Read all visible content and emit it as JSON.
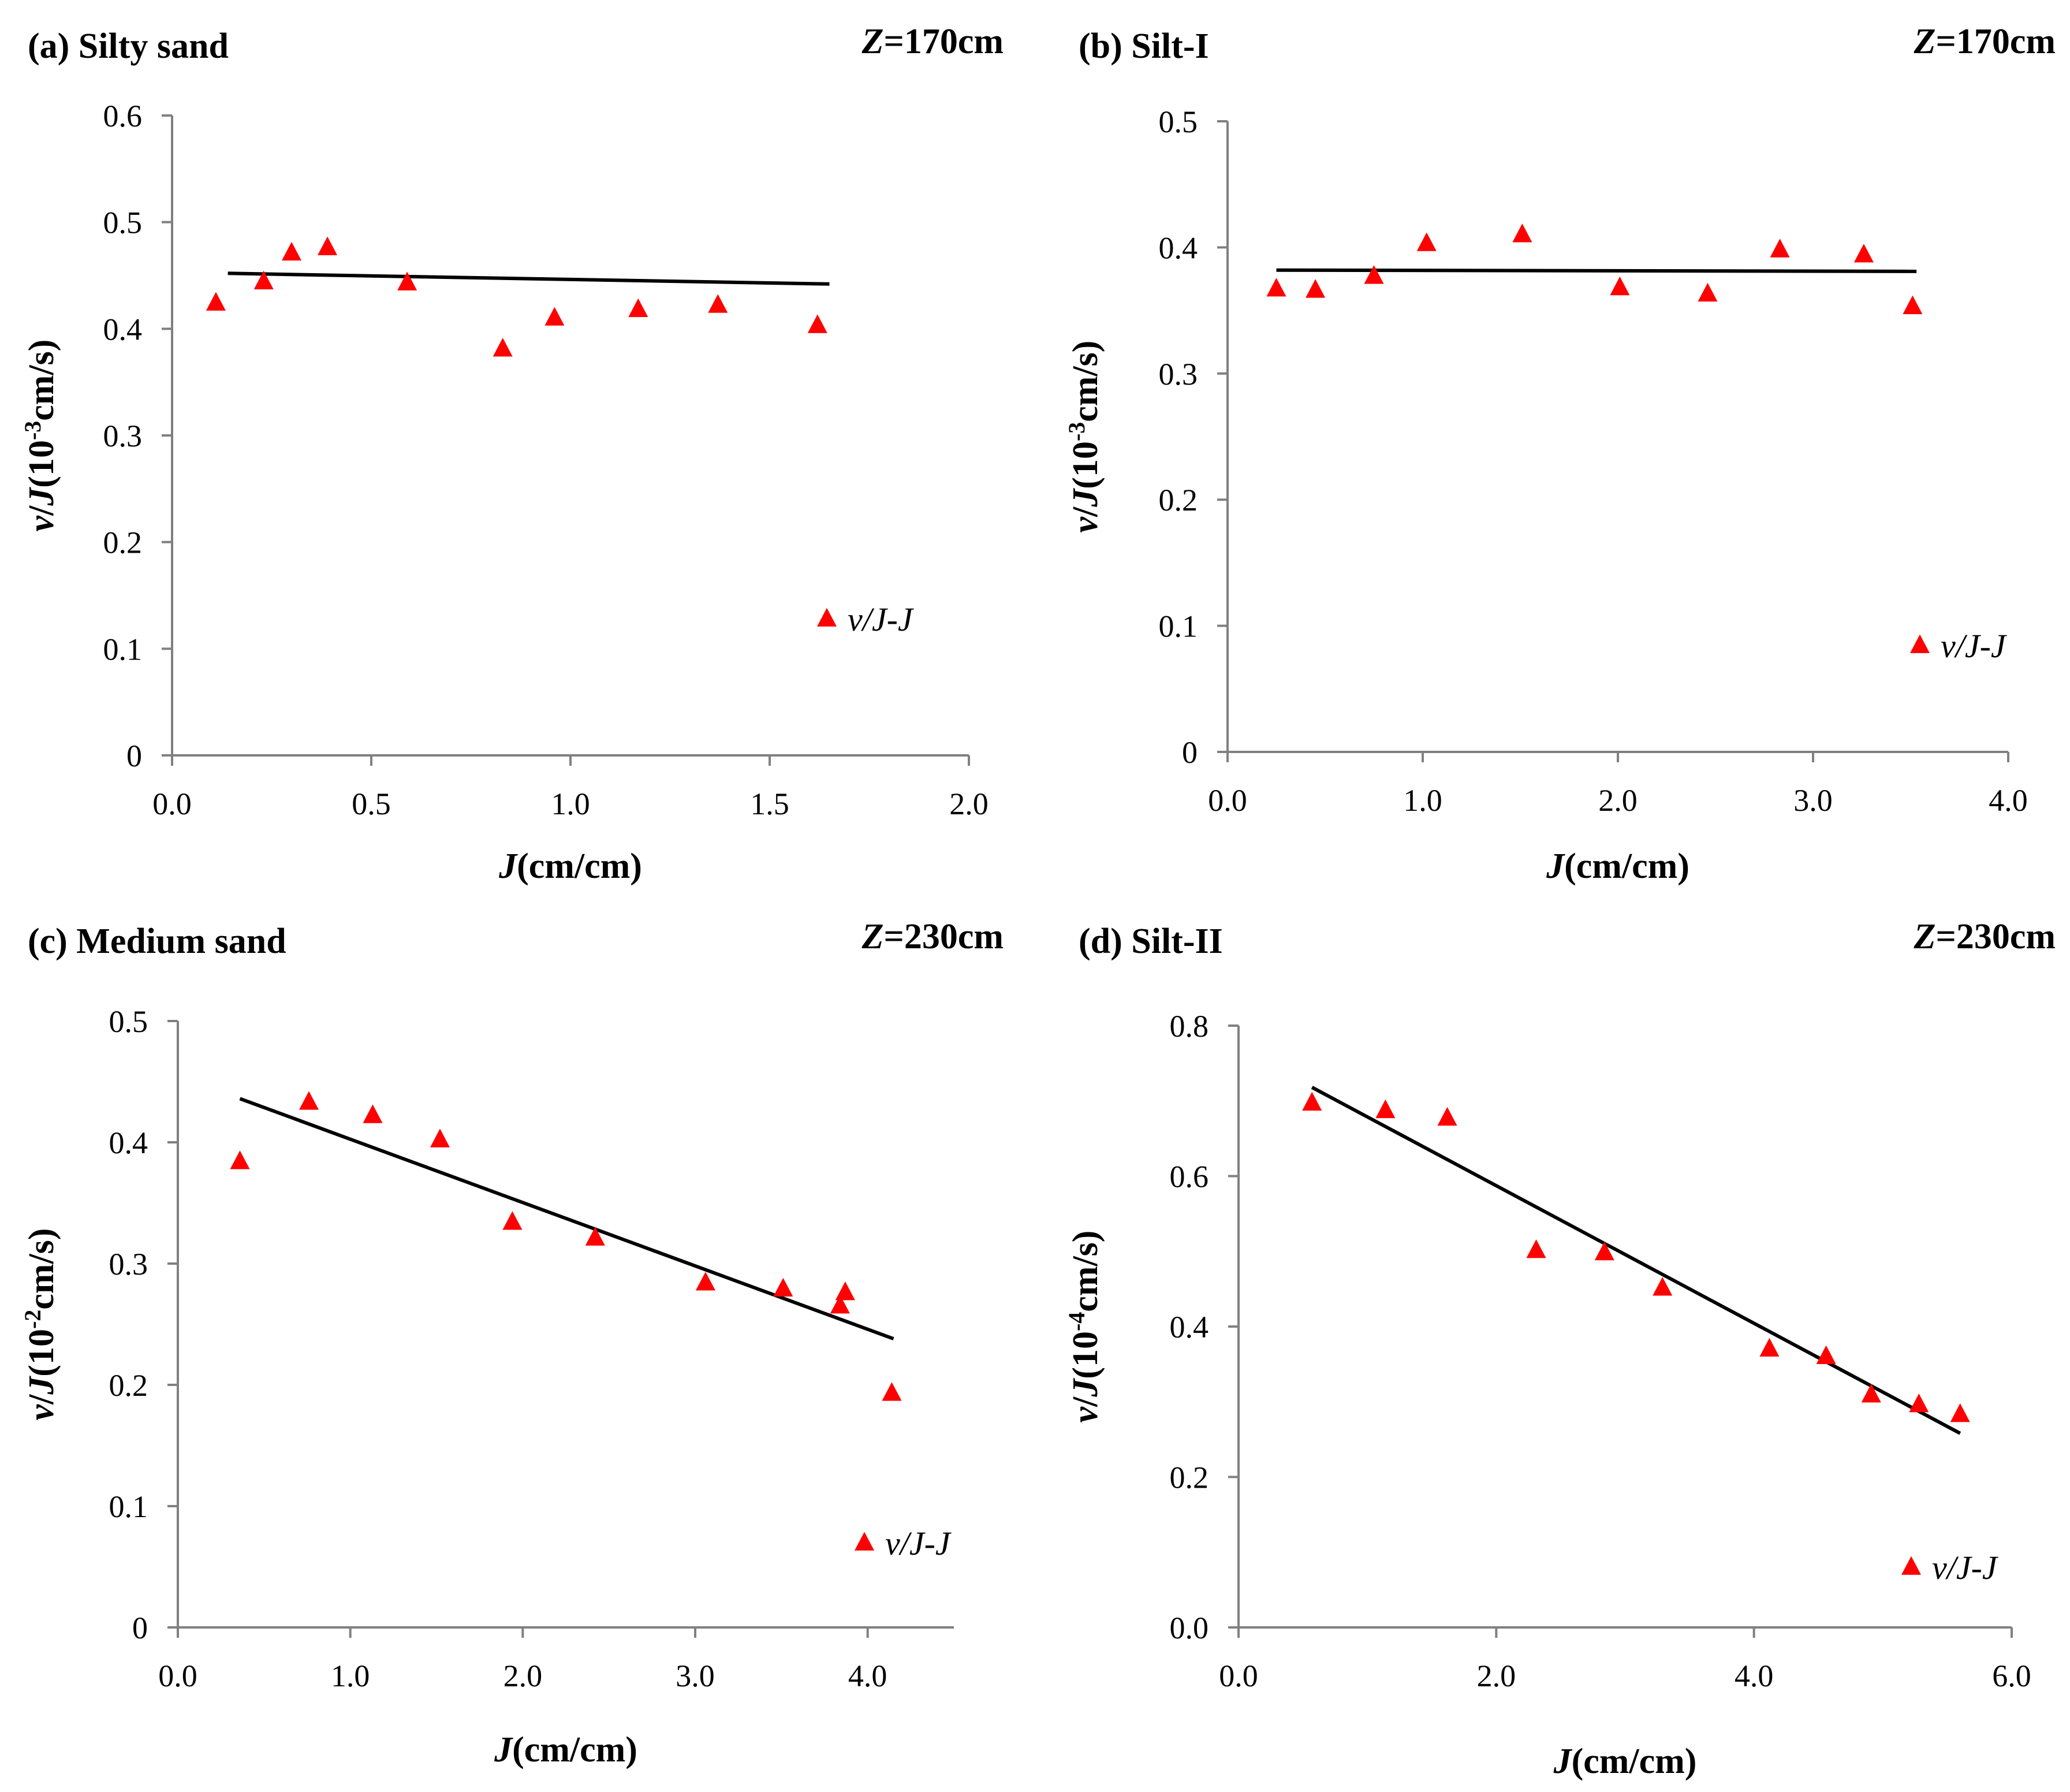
{
  "figure": {
    "marker_color": "#ff0000",
    "fit_color": "#000000",
    "axis_color": "#808080"
  },
  "chart_data": [
    {
      "type": "scatter",
      "panel_label": "(a) Silty sand",
      "depth": {
        "var": "Z",
        "rest": "=170cm"
      },
      "xlabel": {
        "var": "J",
        "rest": "(cm/cm)"
      },
      "ylabel": {
        "v": "v",
        "slash": "/",
        "J": "J",
        "pre": "(10",
        "exp": "-3",
        "post": "cm/s)"
      },
      "xlim": [
        0,
        2.0
      ],
      "ylim": [
        0,
        0.6
      ],
      "xticks": [
        0,
        0.5,
        1.0,
        1.5,
        2.0
      ],
      "xtick_labels": [
        "0.0",
        "0.5",
        "1.0",
        "1.5",
        "2.0"
      ],
      "yticks": [
        0,
        0.1,
        0.2,
        0.3,
        0.4,
        0.5,
        0.6
      ],
      "ytick_labels": [
        "0",
        "0.1",
        "0.2",
        "0.3",
        "0.4",
        "0.5",
        "0.6"
      ],
      "legend": "v/J-J",
      "legend_position": "lower-right",
      "series": [
        {
          "name": "v/J-J",
          "x": [
            0.11,
            0.23,
            0.3,
            0.39,
            0.59,
            0.83,
            0.96,
            1.17,
            1.37,
            1.62
          ],
          "y": [
            0.424,
            0.444,
            0.471,
            0.476,
            0.443,
            0.381,
            0.41,
            0.418,
            0.422,
            0.403
          ]
        }
      ],
      "fit": {
        "x": [
          0.14,
          1.65
        ],
        "y": [
          0.452,
          0.442
        ]
      }
    },
    {
      "type": "scatter",
      "panel_label": "(b) Silt-I",
      "depth": {
        "var": "Z",
        "rest": "=170cm"
      },
      "xlabel": {
        "var": "J",
        "rest": "(cm/cm)"
      },
      "ylabel": {
        "v": "v",
        "slash": "/",
        "J": "J",
        "pre": "(10",
        "exp": "-3",
        "post": "cm/s)"
      },
      "xlim": [
        0,
        4.0
      ],
      "ylim": [
        0,
        0.5
      ],
      "xticks": [
        0,
        1.0,
        2.0,
        3.0,
        4.0
      ],
      "xtick_labels": [
        "0.0",
        "1.0",
        "2.0",
        "3.0",
        "4.0"
      ],
      "yticks": [
        0,
        0.1,
        0.2,
        0.3,
        0.4,
        0.5
      ],
      "ytick_labels": [
        "0",
        "0.1",
        "0.2",
        "0.3",
        "0.4",
        "0.5"
      ],
      "legend": "v/J-J",
      "legend_position": "lower-right",
      "series": [
        {
          "name": "v/J-J",
          "x": [
            0.25,
            0.45,
            0.75,
            1.02,
            1.51,
            2.01,
            2.46,
            2.83,
            3.26,
            3.51
          ],
          "y": [
            0.367,
            0.366,
            0.377,
            0.403,
            0.41,
            0.368,
            0.363,
            0.398,
            0.394,
            0.353
          ]
        }
      ],
      "fit": {
        "x": [
          0.25,
          3.53
        ],
        "y": [
          0.382,
          0.381
        ]
      }
    },
    {
      "type": "scatter",
      "panel_label": "(c) Medium sand",
      "depth": {
        "var": "Z",
        "rest": "=230cm"
      },
      "xlabel": {
        "var": "J",
        "rest": "(cm/cm)"
      },
      "ylabel": {
        "v": "v",
        "slash": "/",
        "J": "J",
        "pre": "(10",
        "exp": "-2",
        "post": "cm/s)"
      },
      "xlim": [
        0,
        4.5
      ],
      "ylim": [
        0,
        0.5
      ],
      "xticks": [
        0,
        1.0,
        2.0,
        3.0,
        4.0
      ],
      "xtick_labels": [
        "0.0",
        "1.0",
        "2.0",
        "3.0",
        "4.0"
      ],
      "yticks": [
        0,
        0.1,
        0.2,
        0.3,
        0.4,
        0.5
      ],
      "ytick_labels": [
        "0",
        "0.1",
        "0.2",
        "0.3",
        "0.4",
        "0.5"
      ],
      "legend": "v/J-J",
      "legend_position": "lower-right",
      "series": [
        {
          "name": "v/J-J",
          "x": [
            0.36,
            0.76,
            1.13,
            1.52,
            1.94,
            2.42,
            3.06,
            3.51,
            3.84,
            3.87,
            4.14
          ],
          "y": [
            0.384,
            0.433,
            0.422,
            0.402,
            0.334,
            0.321,
            0.284,
            0.279,
            0.265,
            0.276,
            0.193
          ]
        }
      ],
      "fit": {
        "x": [
          0.36,
          4.15
        ],
        "y": [
          0.436,
          0.238
        ]
      }
    },
    {
      "type": "scatter",
      "panel_label": "(d) Silt-II",
      "depth": {
        "var": "Z",
        "rest": "=230cm"
      },
      "xlabel": {
        "var": "J",
        "rest": "(cm/cm)"
      },
      "ylabel": {
        "v": "v",
        "slash": "/",
        "J": "J",
        "pre": "(10",
        "exp": "-4",
        "post": "cm/s)"
      },
      "xlim": [
        0,
        6.0
      ],
      "ylim": [
        0,
        0.8
      ],
      "xticks": [
        0,
        2.0,
        4.0,
        6.0
      ],
      "xtick_labels": [
        "0.0",
        "2.0",
        "4.0",
        "6.0"
      ],
      "yticks": [
        0,
        0.2,
        0.4,
        0.6,
        0.8
      ],
      "ytick_labels": [
        "0.0",
        "0.2",
        "0.4",
        "0.6",
        "0.8"
      ],
      "legend": "v/J-J",
      "legend_position": "lower-right",
      "series": [
        {
          "name": "v/J-J",
          "x": [
            0.57,
            1.14,
            1.62,
            2.31,
            2.84,
            3.29,
            4.12,
            4.56,
            4.91,
            5.28,
            5.6
          ],
          "y": [
            0.697,
            0.687,
            0.677,
            0.501,
            0.498,
            0.451,
            0.37,
            0.36,
            0.309,
            0.296,
            0.283
          ]
        }
      ],
      "fit": {
        "x": [
          0.57,
          5.6
        ],
        "y": [
          0.718,
          0.258
        ]
      }
    }
  ]
}
